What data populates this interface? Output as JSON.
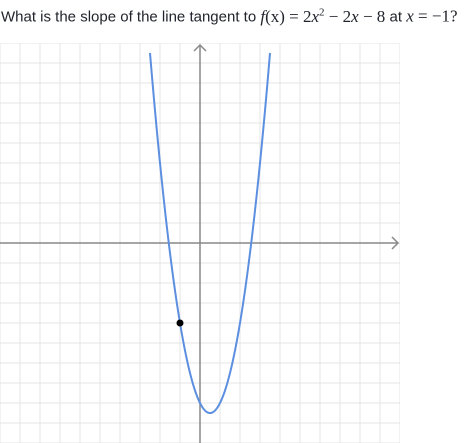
{
  "question": {
    "lead": "What is the slope of the line tangent to",
    "func_name": "f",
    "func_var": "(x)",
    "equals": " = 2",
    "x1": "x",
    "exp": "2",
    "rest": " − 2",
    "x2": "x",
    "tail": " − 8",
    "at": " at ",
    "point_var": "x",
    "point_val": " = −1?"
  },
  "graph": {
    "grid_color": "#e4e4e4",
    "axis_color": "#888888",
    "curve_color": "#5c8fe0",
    "point_color": "#000000"
  },
  "chart_data": {
    "type": "line",
    "function": "f(x) = 2x^2 - 2x - 8",
    "xlim": [
      -10,
      10
    ],
    "ylim": [
      -10,
      10
    ],
    "grid": true,
    "grid_step": 1,
    "series": [
      {
        "x": [
          -2,
          -1.75,
          -1.5,
          -1.25,
          -1,
          -0.75,
          -0.5,
          -0.25,
          0,
          0.25,
          0.5,
          0.75,
          1,
          1.25,
          1.5,
          1.75,
          2,
          2.25,
          2.5,
          2.75,
          3
        ],
        "y": [
          4,
          1.625,
          -0.5,
          -2.375,
          -4,
          -5.375,
          -6.5,
          -7.375,
          -8,
          -8.375,
          -8.5,
          -8.375,
          -8,
          -7.375,
          -6.5,
          -5.375,
          -4,
          -2.375,
          -0.5,
          1.625,
          4
        ]
      }
    ],
    "highlighted_point": {
      "x": -1,
      "y": -4
    }
  }
}
